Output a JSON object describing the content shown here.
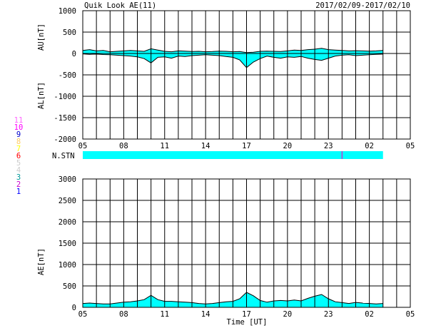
{
  "header": {
    "title": "Quik Look AE(11)",
    "date_range": "2017/02/09-2017/02/10"
  },
  "colors": {
    "fill": "#00ffff",
    "grid": "#000000",
    "station_marker": "#cc33cc"
  },
  "station_legend": [
    {
      "label": "11",
      "color": "#ff66ff"
    },
    {
      "label": "10",
      "color": "#ff00ff"
    },
    {
      "label": "9",
      "color": "#0000cc"
    },
    {
      "label": "8",
      "color": "#ffcc66"
    },
    {
      "label": "7",
      "color": "#ffff00"
    },
    {
      "label": "6",
      "color": "#ff0000"
    },
    {
      "label": "5",
      "color": "#cccccc"
    },
    {
      "label": "4",
      "color": "#cccccc"
    },
    {
      "label": "3",
      "color": "#009999"
    },
    {
      "label": "2",
      "color": "#cc00cc"
    },
    {
      "label": "1",
      "color": "#0000ff"
    }
  ],
  "chart_data": [
    {
      "type": "area",
      "id": "au-al",
      "ylabel_top": "AU[nT]",
      "ylabel_bottom": "AL[nT]",
      "ylim": [
        -2000,
        1000
      ],
      "yticks": [
        "1000",
        "500",
        "0",
        "-500",
        "-1000",
        "-1500",
        "-2000"
      ],
      "x_range_hours": [
        5,
        29
      ],
      "xtick_labels": [
        "05",
        "08",
        "11",
        "14",
        "17",
        "20",
        "23",
        "02",
        "05"
      ],
      "grid": true,
      "series": [
        {
          "key": "AU",
          "x": [
            5,
            5.5,
            6,
            6.5,
            7,
            7.5,
            8,
            8.5,
            9,
            9.5,
            10,
            10.5,
            11,
            11.5,
            12,
            12.5,
            13,
            13.5,
            14,
            14.5,
            15,
            15.5,
            16,
            16.5,
            17,
            17.5,
            18,
            18.5,
            19,
            19.5,
            20,
            20.5,
            21,
            21.5,
            22,
            22.5,
            23,
            23.5,
            24,
            24.5,
            25,
            25.5,
            26,
            26.5,
            27
          ],
          "y": [
            70,
            90,
            60,
            70,
            40,
            50,
            60,
            70,
            60,
            50,
            110,
            80,
            50,
            40,
            60,
            55,
            45,
            50,
            40,
            45,
            55,
            50,
            40,
            45,
            20,
            30,
            50,
            55,
            50,
            45,
            60,
            80,
            70,
            90,
            100,
            120,
            90,
            80,
            70,
            60,
            65,
            60,
            55,
            60,
            70
          ]
        },
        {
          "key": "AL",
          "x": [
            5,
            5.5,
            6,
            6.5,
            7,
            7.5,
            8,
            8.5,
            9,
            9.5,
            10,
            10.5,
            11,
            11.5,
            12,
            12.5,
            13,
            13.5,
            14,
            14.5,
            15,
            15.5,
            16,
            16.5,
            17,
            17.5,
            18,
            18.5,
            19,
            19.5,
            20,
            20.5,
            21,
            21.5,
            22,
            22.5,
            23,
            23.5,
            24,
            24.5,
            25,
            25.5,
            26,
            26.5,
            27
          ],
          "y": [
            -10,
            -20,
            -15,
            -25,
            -30,
            -40,
            -50,
            -60,
            -80,
            -120,
            -220,
            -90,
            -80,
            -110,
            -60,
            -70,
            -50,
            -40,
            -30,
            -40,
            -50,
            -70,
            -90,
            -150,
            -330,
            -200,
            -120,
            -60,
            -90,
            -110,
            -80,
            -90,
            -70,
            -110,
            -140,
            -160,
            -110,
            -60,
            -40,
            -30,
            -50,
            -40,
            -30,
            -20,
            -15
          ]
        }
      ]
    },
    {
      "type": "station_bar",
      "id": "n-stn",
      "label": "N.STN",
      "x_start": 5,
      "x_end": 27,
      "marker_x": 24
    },
    {
      "type": "area",
      "id": "ae",
      "ylabel": "AE[nT]",
      "xlabel": "Time [UT]",
      "ylim": [
        0,
        3000
      ],
      "yticks": [
        "3000",
        "2500",
        "2000",
        "1500",
        "1000",
        "500",
        "0"
      ],
      "x_range_hours": [
        5,
        29
      ],
      "xtick_labels": [
        "05",
        "08",
        "11",
        "14",
        "17",
        "20",
        "23",
        "02",
        "05"
      ],
      "grid": true,
      "series": [
        {
          "key": "AE",
          "x": [
            5,
            5.5,
            6,
            6.5,
            7,
            7.5,
            8,
            8.5,
            9,
            9.5,
            10,
            10.5,
            11,
            11.5,
            12,
            12.5,
            13,
            13.5,
            14,
            14.5,
            15,
            15.5,
            16,
            16.5,
            17,
            17.5,
            18,
            18.5,
            19,
            19.5,
            20,
            20.5,
            21,
            21.5,
            22,
            22.5,
            23,
            23.5,
            24,
            24.5,
            25,
            25.5,
            26,
            26.5,
            27
          ],
          "y": [
            90,
            100,
            90,
            80,
            80,
            100,
            120,
            130,
            150,
            180,
            280,
            180,
            140,
            140,
            130,
            120,
            110,
            90,
            80,
            90,
            110,
            130,
            140,
            200,
            350,
            270,
            160,
            120,
            150,
            160,
            150,
            170,
            150,
            210,
            260,
            300,
            200,
            130,
            110,
            90,
            115,
            100,
            90,
            80,
            90
          ]
        }
      ]
    }
  ]
}
